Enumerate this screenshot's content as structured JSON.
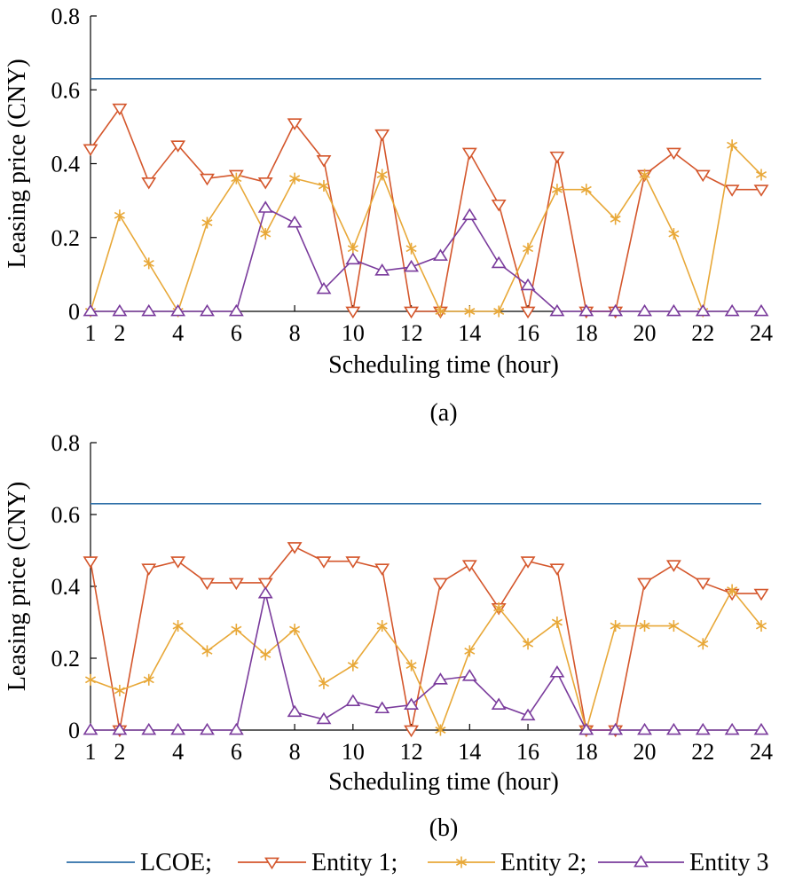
{
  "chart_data": [
    {
      "type": "line",
      "panel_label": "(a)",
      "xlabel": "Scheduling time (hour)",
      "ylabel": "Leasing price (CNY)",
      "xlim": [
        1,
        24
      ],
      "ylim": [
        0,
        0.8
      ],
      "x": [
        1,
        2,
        3,
        4,
        5,
        6,
        7,
        8,
        9,
        10,
        11,
        12,
        13,
        14,
        15,
        16,
        17,
        18,
        19,
        20,
        21,
        22,
        23,
        24
      ],
      "xticks": [
        1,
        2,
        4,
        6,
        8,
        10,
        12,
        14,
        16,
        18,
        20,
        22,
        24
      ],
      "xtick_labels": [
        "1",
        "2",
        "4",
        "6",
        "8",
        "10",
        "12",
        "14",
        "16",
        "18",
        "20",
        "22",
        "24"
      ],
      "yticks": [
        0,
        0.2,
        0.4,
        0.6,
        0.8
      ],
      "ytick_labels": [
        "0",
        "0.2",
        "0.4",
        "0.6",
        "0.8"
      ],
      "grid": false,
      "series": [
        {
          "name": "LCOE",
          "color": "#2e6fa8",
          "marker": "none",
          "values": [
            0.63,
            0.63,
            0.63,
            0.63,
            0.63,
            0.63,
            0.63,
            0.63,
            0.63,
            0.63,
            0.63,
            0.63,
            0.63,
            0.63,
            0.63,
            0.63,
            0.63,
            0.63,
            0.63,
            0.63,
            0.63,
            0.63,
            0.63,
            0.63
          ]
        },
        {
          "name": "Entity 1",
          "color": "#d4562b",
          "marker": "triangle-down",
          "values": [
            0.44,
            0.55,
            0.35,
            0.45,
            0.36,
            0.37,
            0.35,
            0.51,
            0.41,
            0,
            0.48,
            0,
            0,
            0.43,
            0.29,
            0,
            0.42,
            0,
            0,
            0.37,
            0.43,
            0.37,
            0.33,
            0.33
          ]
        },
        {
          "name": "Entity 2",
          "color": "#e8a838",
          "marker": "asterisk",
          "values": [
            0,
            0.26,
            0.13,
            0,
            0.24,
            0.36,
            0.21,
            0.36,
            0.34,
            0.17,
            0.37,
            0.17,
            0,
            0,
            0,
            0.17,
            0.33,
            0.33,
            0.25,
            0.37,
            0.21,
            0,
            0.45,
            0.37
          ]
        },
        {
          "name": "Entity 3",
          "color": "#7a3b9c",
          "marker": "triangle-up",
          "values": [
            0,
            0,
            0,
            0,
            0,
            0,
            0.28,
            0.24,
            0.06,
            0.14,
            0.11,
            0.12,
            0.15,
            0.26,
            0.13,
            0.07,
            0,
            0,
            0,
            0,
            0,
            0,
            0,
            0
          ]
        }
      ]
    },
    {
      "type": "line",
      "panel_label": "(b)",
      "xlabel": "Scheduling time (hour)",
      "ylabel": "Leasing price (CNY)",
      "xlim": [
        1,
        24
      ],
      "ylim": [
        0,
        0.8
      ],
      "x": [
        1,
        2,
        3,
        4,
        5,
        6,
        7,
        8,
        9,
        10,
        11,
        12,
        13,
        14,
        15,
        16,
        17,
        18,
        19,
        20,
        21,
        22,
        23,
        24
      ],
      "xticks": [
        1,
        2,
        4,
        6,
        8,
        10,
        12,
        14,
        16,
        18,
        20,
        22,
        24
      ],
      "xtick_labels": [
        "1",
        "2",
        "4",
        "6",
        "8",
        "10",
        "12",
        "14",
        "16",
        "18",
        "20",
        "22",
        "24"
      ],
      "yticks": [
        0,
        0.2,
        0.4,
        0.6,
        0.8
      ],
      "ytick_labels": [
        "0",
        "0.2",
        "0.4",
        "0.6",
        "0.8"
      ],
      "grid": false,
      "series": [
        {
          "name": "LCOE",
          "color": "#2e6fa8",
          "marker": "none",
          "values": [
            0.63,
            0.63,
            0.63,
            0.63,
            0.63,
            0.63,
            0.63,
            0.63,
            0.63,
            0.63,
            0.63,
            0.63,
            0.63,
            0.63,
            0.63,
            0.63,
            0.63,
            0.63,
            0.63,
            0.63,
            0.63,
            0.63,
            0.63,
            0.63
          ]
        },
        {
          "name": "Entity 1",
          "color": "#d4562b",
          "marker": "triangle-down",
          "values": [
            0.47,
            0,
            0.45,
            0.47,
            0.41,
            0.41,
            0.41,
            0.51,
            0.47,
            0.47,
            0.45,
            0,
            0.41,
            0.46,
            0.34,
            0.47,
            0.45,
            0,
            0,
            0.41,
            0.46,
            0.41,
            0.38,
            0.38
          ]
        },
        {
          "name": "Entity 2",
          "color": "#e8a838",
          "marker": "asterisk",
          "values": [
            0.14,
            0.11,
            0.14,
            0.29,
            0.22,
            0.28,
            0.21,
            0.28,
            0.13,
            0.18,
            0.29,
            0.18,
            0,
            0.22,
            0.34,
            0.24,
            0.3,
            0,
            0.29,
            0.29,
            0.29,
            0.24,
            0.39,
            0.29
          ]
        },
        {
          "name": "Entity 3",
          "color": "#7a3b9c",
          "marker": "triangle-up",
          "values": [
            0,
            0,
            0,
            0,
            0,
            0,
            0.38,
            0.05,
            0.03,
            0.08,
            0.06,
            0.07,
            0.14,
            0.15,
            0.07,
            0.04,
            0.16,
            0,
            0,
            0,
            0,
            0,
            0,
            0
          ]
        }
      ]
    }
  ],
  "legend": {
    "placement": "bottom",
    "entries": [
      {
        "label": "LCOE;",
        "color": "#2e6fa8",
        "marker": "none"
      },
      {
        "label": "Entity 1;",
        "color": "#d4562b",
        "marker": "triangle-down"
      },
      {
        "label": "Entity 2;",
        "color": "#e8a838",
        "marker": "asterisk"
      },
      {
        "label": "Entity 3",
        "color": "#7a3b9c",
        "marker": "triangle-up"
      }
    ]
  }
}
